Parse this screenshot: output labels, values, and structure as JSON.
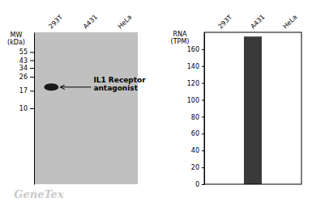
{
  "chart_data": [
    {
      "type": "blot",
      "categories": [
        "293T",
        "A431",
        "HeLa"
      ],
      "values": [
        19,
        null,
        null
      ],
      "color": "#1a1a1a",
      "y_label": "MW\n(kDa)",
      "log": "y",
      "ylim": [
        1,
        100
      ],
      "yticks": [
        55,
        43,
        34,
        26,
        17,
        10
      ],
      "annotations": [
        "IL1 Receptor\nantagonist",
        "GeneTex"
      ]
    },
    {
      "type": "bar",
      "categories": [
        "293T",
        "A431",
        "HeLa"
      ],
      "values": [
        0,
        175,
        0
      ],
      "color": "#3a3a3a",
      "y_label": "RNA\n(TPM)",
      "ylim": [
        0,
        180
      ],
      "yticks": [
        0,
        20,
        40,
        60,
        80,
        100,
        120,
        140,
        160
      ],
      "grid": false
    }
  ]
}
